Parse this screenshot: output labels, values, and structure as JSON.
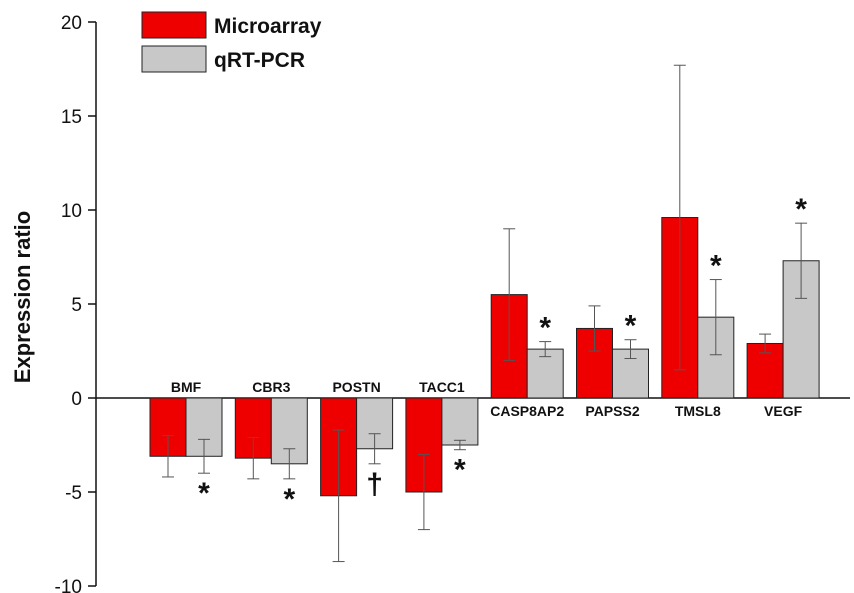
{
  "chart_data": {
    "type": "bar",
    "title": "",
    "xlabel": "",
    "ylabel": "Expression ratio",
    "ylim": [
      -10,
      20
    ],
    "yticks": [
      -10,
      -5,
      0,
      5,
      10,
      15,
      20
    ],
    "grid": false,
    "legend_position": "top-left",
    "categories": [
      "BMF",
      "CBR3",
      "POSTN",
      "TACC1",
      "CASP8AP2",
      "PAPSS2",
      "TMSL8",
      "VEGF"
    ],
    "series": [
      {
        "name": "Microarray",
        "color": "#ee0000",
        "values": [
          -3.1,
          -3.2,
          -5.2,
          -5.0,
          5.5,
          3.7,
          9.6,
          2.9
        ],
        "errors": [
          1.1,
          1.1,
          3.5,
          2.0,
          3.5,
          1.2,
          8.1,
          0.5
        ]
      },
      {
        "name": "qRT-PCR",
        "color": "#c8c8c8",
        "values": [
          -3.1,
          -3.5,
          -2.7,
          -2.5,
          2.6,
          2.6,
          4.3,
          7.3
        ],
        "errors": [
          0.9,
          0.8,
          0.8,
          0.25,
          0.4,
          0.5,
          2.0,
          2.0
        ]
      }
    ],
    "annotations": [
      "*",
      "*",
      "†",
      "*",
      "*",
      "*",
      "*",
      "*"
    ]
  }
}
